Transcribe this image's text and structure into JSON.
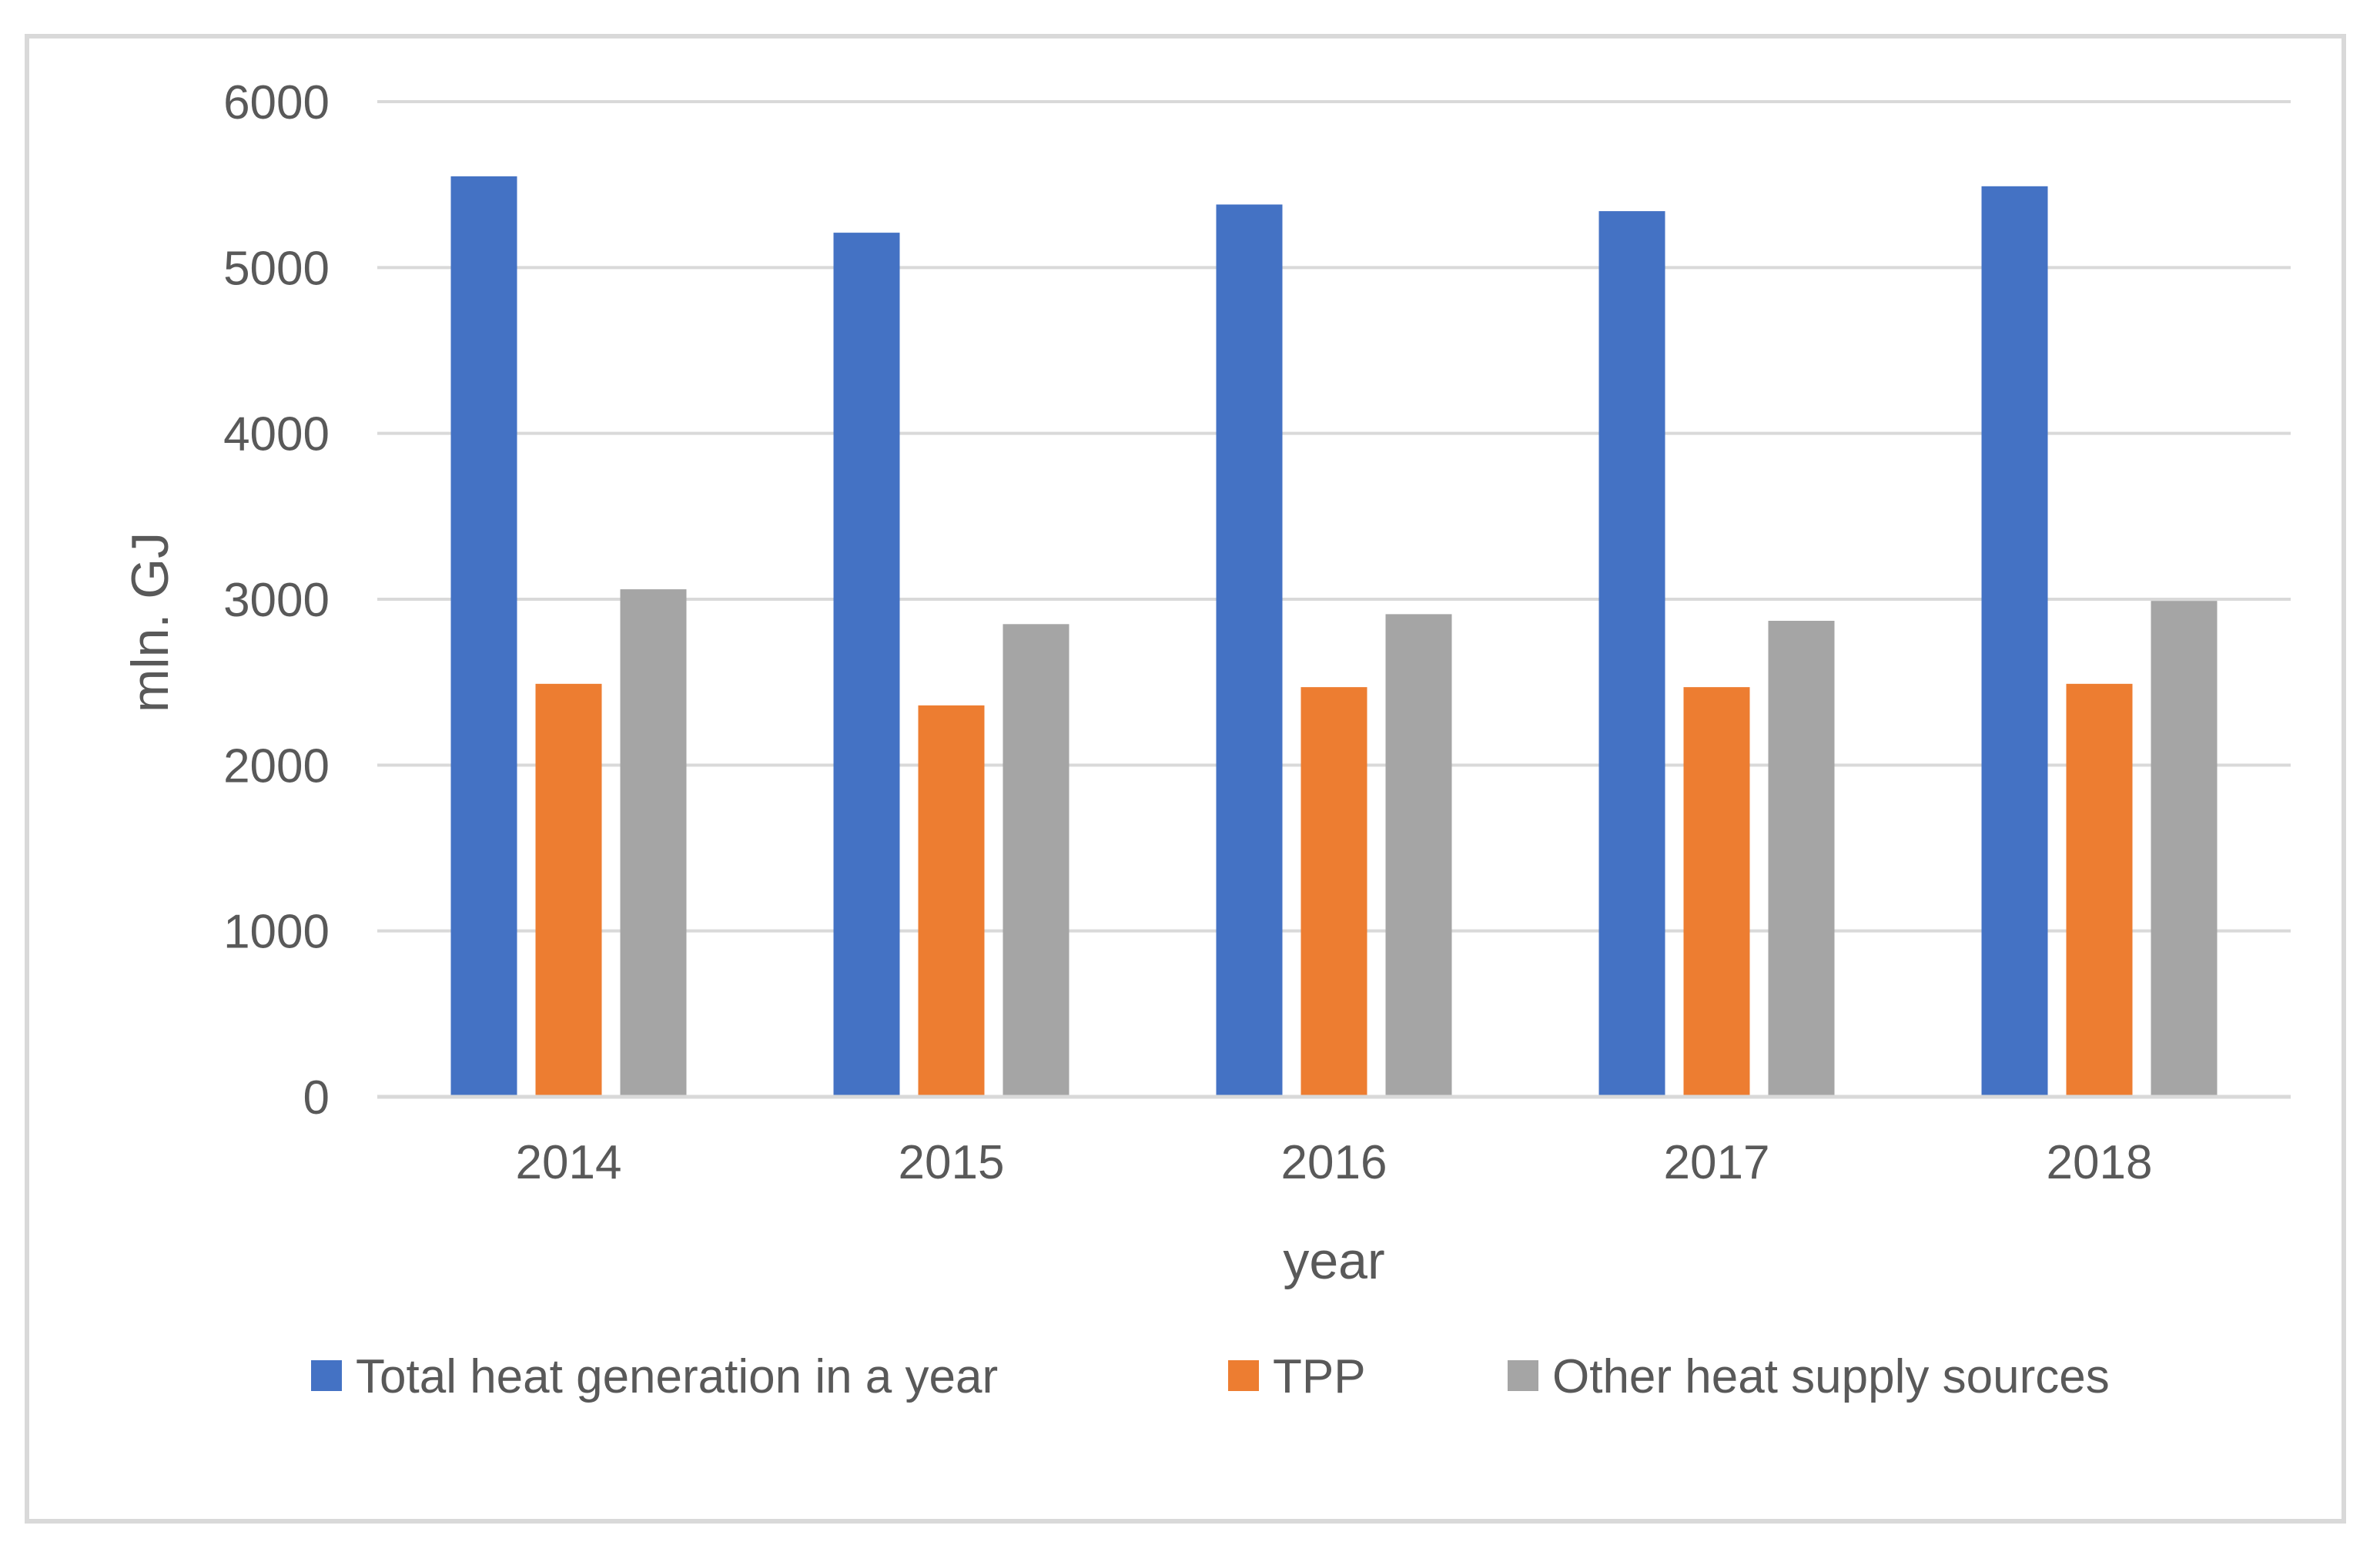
{
  "chart_data": {
    "type": "bar",
    "title": "",
    "xlabel": "year",
    "ylabel": "mln. GJ",
    "ylim": [
      0,
      6000
    ],
    "yticks": [
      0,
      1000,
      2000,
      3000,
      4000,
      5000,
      6000
    ],
    "grid": true,
    "legend_position": "bottom",
    "categories": [
      "2014",
      "2015",
      "2016",
      "2017",
      "2018"
    ],
    "series": [
      {
        "name": "Total heat generation in a year",
        "color": "#4472c4",
        "values": [
          5550,
          5210,
          5380,
          5340,
          5490
        ]
      },
      {
        "name": "TPP",
        "color": "#ed7d31",
        "values": [
          2490,
          2360,
          2470,
          2470,
          2490
        ]
      },
      {
        "name": "Other heat supply sources",
        "color": "#a5a5a5",
        "values": [
          3060,
          2850,
          2910,
          2870,
          2990
        ]
      }
    ]
  }
}
